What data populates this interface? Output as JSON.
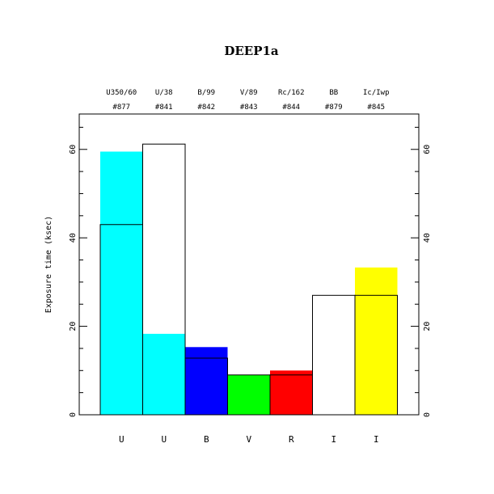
{
  "chart_data": {
    "type": "bar",
    "title": "DEEP1a",
    "ylabel": "Exposure time (ksec)",
    "xlabel": "",
    "ylim": [
      0,
      68
    ],
    "yticks": [
      0,
      20,
      40,
      60
    ],
    "categories": [
      "U",
      "U",
      "B",
      "V",
      "R",
      "I",
      "I"
    ],
    "filters": [
      "U350/60",
      "U/38",
      "B/99",
      "V/89",
      "Rc/162",
      "BB",
      "Ic/Iwp"
    ],
    "filter_ids": [
      "#877",
      "#841",
      "#842",
      "#843",
      "#844",
      "#879",
      "#845"
    ],
    "filled_values": [
      59.5,
      18.3,
      15.3,
      9.0,
      10.0,
      0,
      33.3
    ],
    "outline_values": [
      43.0,
      61.2,
      12.8,
      9.0,
      9.0,
      27.0,
      27.0
    ],
    "colors": [
      "#00ffff",
      "#00ffff",
      "#0000ff",
      "#00ff00",
      "#ff0000",
      "#ffffff",
      "#ffff00"
    ],
    "grid": false,
    "legend": "none"
  }
}
